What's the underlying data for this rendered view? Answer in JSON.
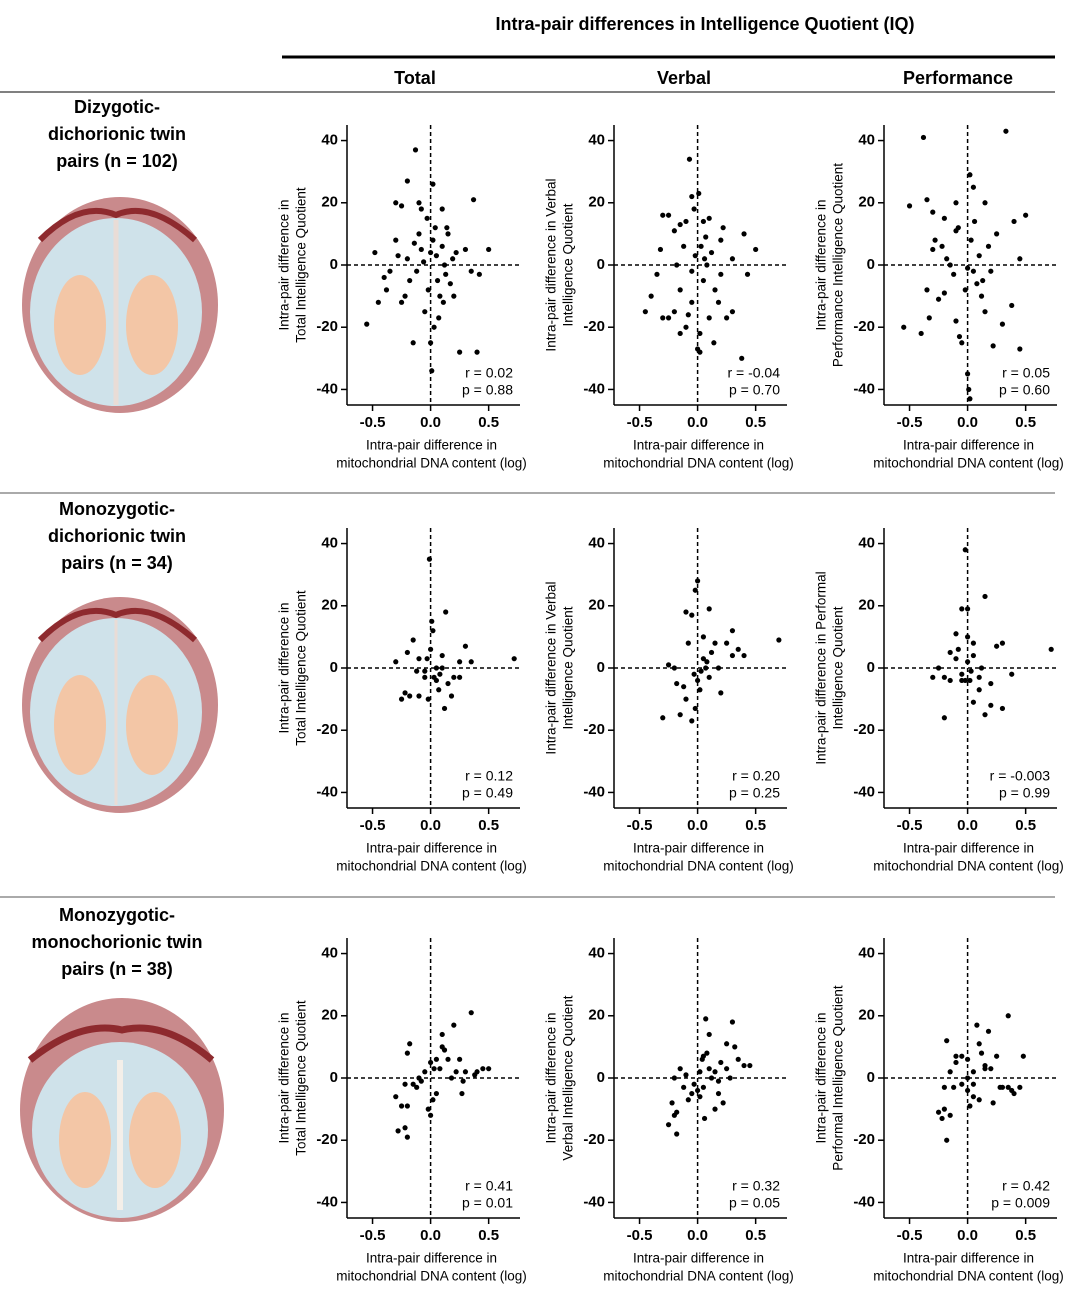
{
  "header": {
    "title": "Intra-pair differences in Intelligence Quotient (IQ)",
    "columns": [
      "Total",
      "Verbal",
      "Performance"
    ]
  },
  "rows": [
    [
      "Dizygotic-",
      "dichorionic twin",
      "pairs (n = 102)"
    ],
    [
      "Monozygotic-",
      "dichorionic twin",
      "pairs (n = 34)"
    ],
    [
      "Monozygotic-",
      "monochorionic twin",
      "pairs (n = 38)"
    ]
  ],
  "chart_data": [
    {
      "type": "scatter",
      "ylabel": [
        "Intra-pair difference in",
        "Total Intelligence Quotient"
      ],
      "xlabel": [
        "Intra-pair difference in",
        "mitochondrial DNA content (log)"
      ],
      "annotations": [
        "r = 0.02",
        "p = 0.88"
      ],
      "color": "#000000",
      "xlim": [
        -0.72,
        0.77
      ],
      "ylim": [
        -45,
        45
      ],
      "xticks": [
        -0.5,
        {
          "value": 0,
          "label": "0.0"
        },
        0.5
      ],
      "yticks": [
        -40,
        -20,
        0,
        20,
        40
      ],
      "x": [
        -0.3,
        -0.25,
        -0.2,
        -0.13,
        -0.1,
        -0.08,
        0.02,
        0.1,
        0.14,
        0.37,
        0.5,
        -0.55,
        -0.48,
        -0.4,
        -0.38,
        -0.35,
        -0.3,
        -0.28,
        -0.25,
        -0.22,
        -0.2,
        -0.18,
        -0.15,
        -0.12,
        -0.1,
        -0.08,
        -0.05,
        -0.03,
        -0.02,
        0,
        0.01,
        0.02,
        0.03,
        0.04,
        0.05,
        0.06,
        0.08,
        0.1,
        0.12,
        0.13,
        0.15,
        0.17,
        0.19,
        0.22,
        0.25,
        0.3,
        0.35,
        0.4,
        0.42,
        -0.45,
        0.07,
        -0.06,
        0,
        0.11,
        -0.14,
        0.2
      ],
      "values": [
        20,
        19,
        27,
        37,
        20,
        18,
        26,
        18,
        12,
        21,
        5,
        -19,
        4,
        -4,
        -8,
        -2,
        8,
        3,
        -12,
        -10,
        2,
        -5,
        -25,
        -2,
        10,
        5,
        -15,
        15,
        -8,
        -25,
        -34,
        8,
        -20,
        12,
        3,
        -5,
        -10,
        6,
        0,
        -3,
        10,
        -6,
        2,
        4,
        -28,
        5,
        -2,
        -28,
        -3,
        -12,
        -17,
        1,
        4,
        -12,
        7,
        -10
      ]
    },
    {
      "type": "scatter",
      "ylabel": [
        "Intra-pair difference in Verbal",
        "Intelligence Quotient"
      ],
      "xlabel": [
        "Intra-pair difference in",
        "mitochondrial DNA content (log)"
      ],
      "annotations": [
        "r = -0.04",
        "p = 0.70"
      ],
      "color": "#000000",
      "xlim": [
        -0.72,
        0.77
      ],
      "ylim": [
        -45,
        45
      ],
      "xticks": [
        -0.5,
        {
          "value": 0,
          "label": "0.0"
        },
        0.5
      ],
      "yticks": [
        -40,
        -20,
        0,
        20,
        40
      ],
      "x": [
        -0.07,
        -0.05,
        0.01,
        -0.3,
        -0.25,
        -0.2,
        -0.15,
        -0.1,
        0.05,
        0.1,
        0.2,
        0.4,
        0.5,
        -0.45,
        -0.4,
        -0.35,
        -0.32,
        -0.3,
        -0.2,
        -0.18,
        -0.15,
        -0.1,
        -0.08,
        -0.05,
        -0.02,
        0,
        0.02,
        0.03,
        0.05,
        0.08,
        0.1,
        0.12,
        0.15,
        0.18,
        0.2,
        0.25,
        0.3,
        0.38,
        0.43,
        -0.25,
        -0.15,
        -0.05,
        0.07,
        -0.12,
        0.02,
        0.14,
        0.06,
        -0.03,
        0.22,
        0.3
      ],
      "values": [
        34,
        22,
        23,
        16,
        16,
        11,
        13,
        14,
        14,
        15,
        8,
        10,
        5,
        -15,
        -10,
        -3,
        5,
        -17,
        -15,
        0,
        -8,
        -20,
        -16,
        -12,
        3,
        -27,
        -22,
        6,
        -5,
        0,
        -17,
        4,
        -8,
        -12,
        -3,
        -17,
        -15,
        -30,
        -3,
        -17,
        -22,
        -2,
        9,
        6,
        -28,
        -25,
        2,
        18,
        12,
        2
      ]
    },
    {
      "type": "scatter",
      "ylabel": [
        "Intra-pair difference in",
        "Performance Intelligence Quotient"
      ],
      "xlabel": [
        "Intra-pair difference in",
        "mitochondrial DNA content (log)"
      ],
      "annotations": [
        "r = 0.05",
        "p = 0.60"
      ],
      "color": "#000000",
      "xlim": [
        -0.72,
        0.77
      ],
      "ylim": [
        -45,
        45
      ],
      "xticks": [
        -0.5,
        {
          "value": 0,
          "label": "0.0"
        },
        0.5
      ],
      "yticks": [
        -40,
        -20,
        0,
        20,
        40
      ],
      "x": [
        -0.38,
        0.33,
        -0.5,
        -0.35,
        -0.3,
        -0.2,
        -0.1,
        0.02,
        0.05,
        0.15,
        0.4,
        0.5,
        -0.55,
        -0.4,
        -0.33,
        -0.3,
        -0.25,
        -0.22,
        -0.2,
        -0.15,
        -0.12,
        -0.1,
        -0.07,
        -0.05,
        -0.02,
        0,
        0.01,
        0.02,
        0.03,
        0.05,
        0.08,
        0.1,
        0.12,
        0.15,
        0.18,
        0.2,
        0.22,
        0.3,
        0.38,
        0.45,
        0.45,
        -0.28,
        -0.18,
        -0.08,
        0.06,
        0.25,
        -0.1,
        0,
        0.13,
        -0.35
      ],
      "values": [
        41,
        43,
        19,
        21,
        17,
        15,
        20,
        29,
        25,
        20,
        14,
        16,
        -20,
        -22,
        -17,
        5,
        -11,
        6,
        -9,
        0,
        -3,
        11,
        -23,
        -25,
        -8,
        -35,
        -40,
        -43,
        8,
        -2,
        -6,
        3,
        -10,
        -15,
        6,
        -2,
        -26,
        -19,
        -13,
        2,
        -27,
        8,
        2,
        12,
        14,
        10,
        -18,
        -1,
        -5,
        -8
      ]
    },
    {
      "type": "scatter",
      "ylabel": [
        "Intra-pair difference in",
        "Total Intelligence Quotient"
      ],
      "xlabel": [
        "Intra-pair difference in",
        "mitochondrial DNA content (log)"
      ],
      "annotations": [
        "r = 0.12",
        "p = 0.49"
      ],
      "color": "#000000",
      "xlim": [
        -0.72,
        0.77
      ],
      "ylim": [
        -45,
        45
      ],
      "xticks": [
        -0.5,
        {
          "value": 0,
          "label": "0.0"
        },
        0.5
      ],
      "yticks": [
        -40,
        -20,
        0,
        20,
        40
      ],
      "x": [
        -0.01,
        -0.3,
        -0.25,
        -0.22,
        -0.2,
        -0.15,
        -0.1,
        -0.05,
        -0.03,
        0,
        0.01,
        0.02,
        0.03,
        0.05,
        0.07,
        0.1,
        0.12,
        0.13,
        0.18,
        0.2,
        0.25,
        0.3,
        0.35,
        0.72,
        -0.18,
        -0.1,
        -0.02,
        0.05,
        0.08,
        0.15,
        0.25,
        -0.05,
        0.1,
        -0.12
      ],
      "values": [
        35,
        2,
        -10,
        -8,
        5,
        9,
        -9,
        -3,
        3,
        6,
        15,
        12,
        -3,
        0,
        -7,
        4,
        -13,
        18,
        -9,
        -3,
        2,
        7,
        2,
        3,
        -9,
        3,
        -10,
        -4,
        -2,
        -5,
        -3,
        -1,
        0,
        -1
      ]
    },
    {
      "type": "scatter",
      "ylabel": [
        "Intra-pair difference in Verbal",
        "Intelligence Quotient"
      ],
      "xlabel": [
        "Intra-pair difference in",
        "mitochondrial DNA content (log)"
      ],
      "annotations": [
        "r = 0.20",
        "p = 0.25"
      ],
      "color": "#000000",
      "xlim": [
        -0.72,
        0.77
      ],
      "ylim": [
        -45,
        45
      ],
      "xticks": [
        -0.5,
        {
          "value": 0,
          "label": "0.0"
        },
        0.5
      ],
      "yticks": [
        -40,
        -20,
        0,
        20,
        40
      ],
      "x": [
        0,
        -0.1,
        -0.05,
        0.1,
        -0.02,
        0.05,
        0.15,
        0.25,
        0.3,
        0.4,
        0.7,
        -0.3,
        -0.25,
        -0.2,
        -0.18,
        -0.15,
        -0.1,
        -0.05,
        -0.02,
        0,
        0.02,
        0.05,
        0.08,
        0.1,
        0.12,
        0.18,
        0.2,
        0.3,
        -0.08,
        0.03,
        0.07,
        -0.03,
        0.35,
        -0.12
      ],
      "values": [
        28,
        18,
        17,
        19,
        25,
        10,
        8,
        8,
        12,
        4,
        9,
        -16,
        1,
        0,
        -5,
        -15,
        -10,
        -17,
        -13,
        -4,
        -7,
        3,
        2,
        -3,
        5,
        0,
        -8,
        4,
        8,
        -1,
        0,
        -2,
        6,
        -6
      ]
    },
    {
      "type": "scatter",
      "ylabel": [
        "Intra-pair difference in Performal",
        "Intelligence Quotient"
      ],
      "xlabel": [
        "Intra-pair difference in",
        "mitochondrial DNA content (log)"
      ],
      "annotations": [
        "r = -0.003",
        "p = 0.99"
      ],
      "color": "#000000",
      "xlim": [
        -0.72,
        0.77
      ],
      "ylim": [
        -45,
        45
      ],
      "xticks": [
        -0.5,
        {
          "value": 0,
          "label": "0.0"
        },
        0.5
      ],
      "yticks": [
        -40,
        -20,
        0,
        20,
        40
      ],
      "x": [
        -0.02,
        0.15,
        -0.05,
        0,
        -0.1,
        0,
        0.05,
        0.3,
        0.72,
        -0.25,
        -0.2,
        -0.15,
        -0.1,
        -0.05,
        -0.02,
        0,
        0.02,
        0.03,
        0.05,
        0.1,
        0.15,
        0.2,
        0.3,
        0.38,
        -0.2,
        -0.15,
        0.1,
        0.25,
        0.2,
        -0.08,
        0.05,
        -0.3,
        0.12,
        -0.05
      ],
      "values": [
        38,
        23,
        19,
        19,
        11,
        10,
        8,
        8,
        6,
        0,
        -3,
        5,
        3,
        -2,
        -4,
        2,
        -4,
        -1,
        -11,
        -7,
        -15,
        -12,
        -13,
        -2,
        -16,
        -4,
        -3,
        7,
        -5,
        6,
        4,
        -3,
        0,
        -4
      ]
    },
    {
      "type": "scatter",
      "ylabel": [
        "Intra-pair difference in",
        "Total Intelligence Quotient"
      ],
      "xlabel": [
        "Intra-pair difference in",
        "mitochondrial DNA content (log)"
      ],
      "annotations": [
        "r = 0.41",
        "p = 0.01"
      ],
      "color": "#000000",
      "xlim": [
        -0.72,
        0.77
      ],
      "ylim": [
        -45,
        45
      ],
      "xticks": [
        -0.5,
        {
          "value": 0,
          "label": "0.0"
        },
        0.5
      ],
      "yticks": [
        -40,
        -20,
        0,
        20,
        40
      ],
      "x": [
        -0.3,
        -0.28,
        -0.25,
        -0.2,
        -0.2,
        -0.22,
        -0.22,
        -0.2,
        -0.18,
        -0.15,
        -0.1,
        -0.08,
        -0.05,
        0,
        0.02,
        0.05,
        0.05,
        0.1,
        0.08,
        0.12,
        0.15,
        0.2,
        0.22,
        0.25,
        0.27,
        0.3,
        0.35,
        0.38,
        0.4,
        0.45,
        0.5,
        0.03,
        -0.12,
        0,
        0.1,
        0.18,
        -0.02,
        0.28
      ],
      "values": [
        -6,
        -17,
        -9,
        -9,
        -19,
        -16,
        -2,
        8,
        11,
        -2,
        0,
        -1,
        2,
        -12,
        -7,
        6,
        -5,
        14,
        3,
        9,
        6,
        17,
        2,
        6,
        -5,
        2,
        21,
        1,
        2,
        3,
        3,
        3,
        -3,
        5,
        10,
        0,
        -10,
        -1
      ]
    },
    {
      "type": "scatter",
      "ylabel": [
        "Intra-pair difference in",
        "Verbal Intelligence Quotient"
      ],
      "xlabel": [
        "Intra-pair difference in",
        "mitochondrial DNA content (log)"
      ],
      "annotations": [
        "r = 0.32",
        "p = 0.05"
      ],
      "color": "#000000",
      "xlim": [
        -0.72,
        0.77
      ],
      "ylim": [
        -45,
        45
      ],
      "xticks": [
        -0.5,
        {
          "value": 0,
          "label": "0.0"
        },
        0.5
      ],
      "yticks": [
        -40,
        -20,
        0,
        20,
        40
      ],
      "x": [
        -0.25,
        -0.2,
        -0.18,
        -0.22,
        -0.2,
        -0.15,
        -0.1,
        -0.05,
        -0.03,
        0,
        0.02,
        0.04,
        0.05,
        0.07,
        0.08,
        0.1,
        0.12,
        0.15,
        0.18,
        0.2,
        0.22,
        0.25,
        0.28,
        0.3,
        0.32,
        0.35,
        0.45,
        -0.18,
        0.02,
        0.1,
        -0.08,
        0.15,
        0.25,
        0.4,
        -0.12,
        0.05,
        0.18,
        0.06
      ],
      "values": [
        -15,
        -12,
        -11,
        -8,
        0,
        3,
        1,
        -5,
        -2,
        -4,
        -6,
        6,
        -3,
        19,
        8,
        14,
        0,
        -10,
        -5,
        5,
        -8,
        3,
        0,
        18,
        10,
        6,
        4,
        -18,
        2,
        3,
        -7,
        2,
        11,
        4,
        -3,
        7,
        -1,
        -13
      ]
    },
    {
      "type": "scatter",
      "ylabel": [
        "Intra-pair difference in",
        "Performal Intelligence Quotient"
      ],
      "xlabel": [
        "Intra-pair difference in",
        "mitochondrial DNA content (log)"
      ],
      "annotations": [
        "r = 0.42",
        "p = 0.009"
      ],
      "color": "#000000",
      "xlim": [
        -0.72,
        0.77
      ],
      "ylim": [
        -45,
        45
      ],
      "xticks": [
        -0.5,
        {
          "value": 0,
          "label": "0.0"
        },
        0.5
      ],
      "yticks": [
        -40,
        -20,
        0,
        20,
        40
      ],
      "x": [
        -0.25,
        -0.22,
        -0.2,
        -0.18,
        -0.15,
        -0.15,
        -0.12,
        -0.1,
        -0.05,
        0,
        0,
        0.02,
        0.05,
        0.08,
        0.1,
        0.12,
        0.15,
        0.18,
        0.2,
        0.22,
        0.25,
        0.3,
        0.35,
        0.4,
        0.45,
        0.48,
        0.35,
        -0.18,
        -0.1,
        0.05,
        0.1,
        0.28,
        0.38,
        -0.2,
        0,
        0.15,
        0.05,
        -0.05
      ],
      "values": [
        -11,
        -13,
        -10,
        -20,
        -12,
        2,
        -3,
        5,
        7,
        6,
        -4,
        -9,
        -2,
        17,
        -7,
        8,
        3,
        15,
        3,
        -8,
        7,
        -3,
        20,
        -5,
        -3,
        7,
        -3,
        12,
        7,
        2,
        11,
        -3,
        -4,
        -3,
        0,
        4,
        -6,
        -2
      ]
    }
  ]
}
